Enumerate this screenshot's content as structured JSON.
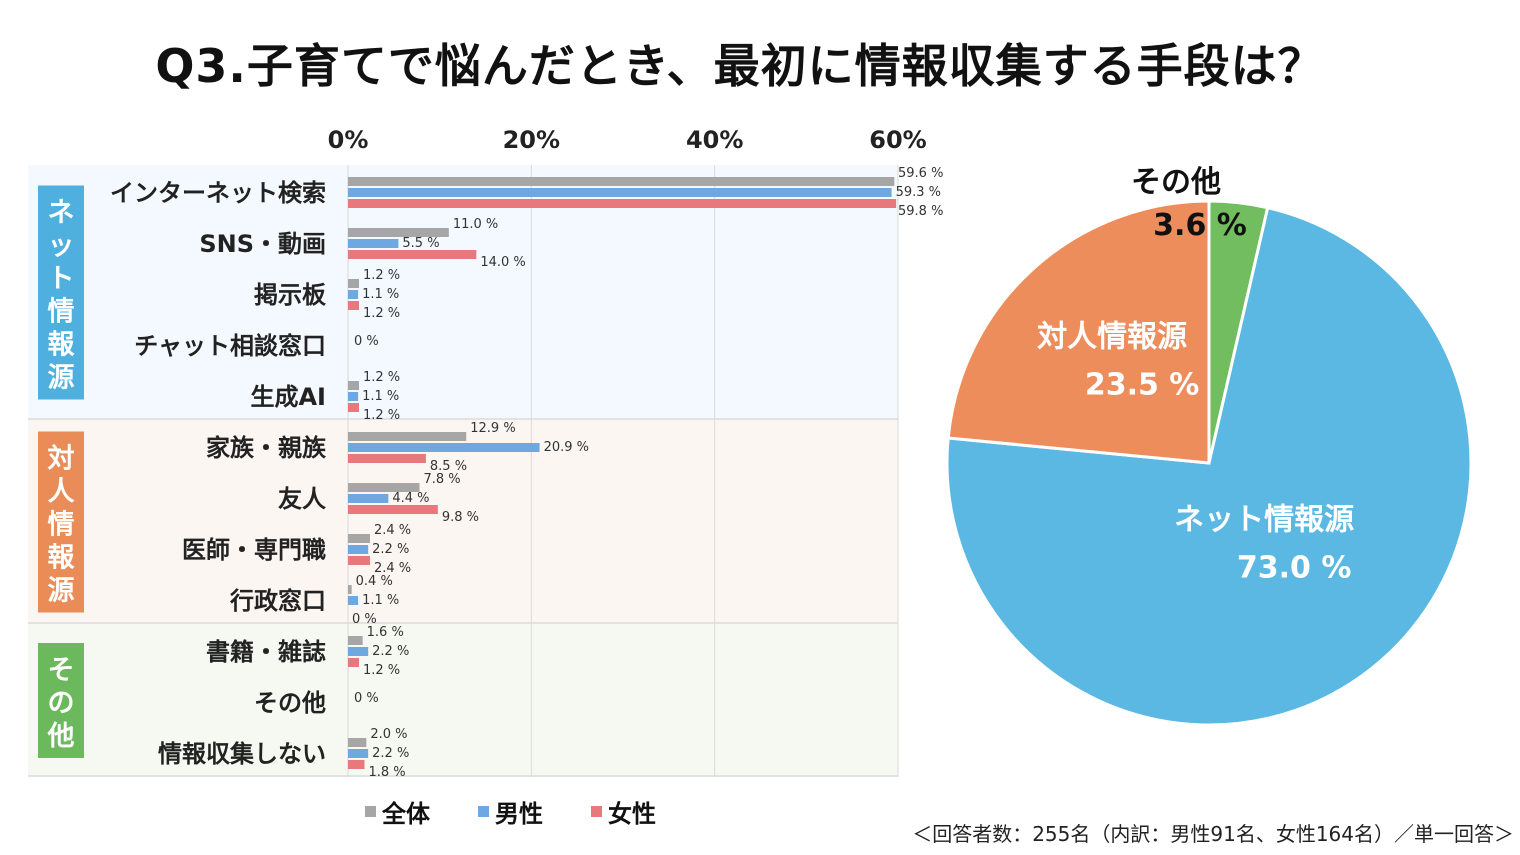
{
  "title": "Q3.子育てで悩んだとき、最初に情報収集する手段は？",
  "note": "＜回答者数：255名（内訳：男性91名、女性164名）／単一回答＞",
  "colors": {
    "all": "#a6a6a6",
    "male": "#6fa8e0",
    "female": "#e8787c",
    "net_bg": "#f3f9fe",
    "person_bg": "#fcf6f3",
    "other_bg": "#f5f9f1",
    "net_tag": "#4fb0e0",
    "person_tag": "#e98c57",
    "other_tag": "#6cb85c",
    "pie_net": "#5bb8e3",
    "pie_person": "#ec8d5b",
    "pie_other": "#72bd5f"
  },
  "chart_data": [
    {
      "type": "bar",
      "orientation": "horizontal",
      "axis_ticks": [
        "0%",
        "20%",
        "40%",
        "60%"
      ],
      "xlim": [
        0,
        60
      ],
      "unit_suffix": " %",
      "legend": [
        {
          "key": "all",
          "label": "全体"
        },
        {
          "key": "male",
          "label": "男性"
        },
        {
          "key": "female",
          "label": "女性"
        }
      ],
      "groups": [
        {
          "key": "net",
          "label": "ネット情報源"
        },
        {
          "key": "person",
          "label": "対人情報源"
        },
        {
          "key": "other",
          "label": "その他"
        }
      ],
      "categories": [
        {
          "label": "インターネット検索",
          "group": "net",
          "all": 59.6,
          "male": 59.3,
          "female": 59.8,
          "labels": [
            "59.6 %",
            "59.3 %",
            "59.8 %"
          ]
        },
        {
          "label": "SNS・動画",
          "group": "net",
          "all": 11.0,
          "male": 5.5,
          "female": 14.0,
          "labels": [
            "11.0 %",
            "5.5 %",
            "14.0 %"
          ]
        },
        {
          "label": "掲示板",
          "group": "net",
          "all": 1.2,
          "male": 1.1,
          "female": 1.2,
          "labels": [
            "1.2 %",
            "1.1 %",
            "1.2 %"
          ]
        },
        {
          "label": "チャット相談窓口",
          "group": "net",
          "all": 0,
          "male": 0,
          "female": 0,
          "labels": [
            "0 %"
          ]
        },
        {
          "label": "生成AI",
          "group": "net",
          "all": 1.2,
          "male": 1.1,
          "female": 1.2,
          "labels": [
            "1.2 %",
            "1.1 %",
            "1.2 %"
          ]
        },
        {
          "label": "家族・親族",
          "group": "person",
          "all": 12.9,
          "male": 20.9,
          "female": 8.5,
          "labels": [
            "12.9 %",
            "20.9 %",
            "8.5 %"
          ]
        },
        {
          "label": "友人",
          "group": "person",
          "all": 7.8,
          "male": 4.4,
          "female": 9.8,
          "labels": [
            "7.8 %",
            "4.4 %",
            "9.8 %"
          ]
        },
        {
          "label": "医師・専門職",
          "group": "person",
          "all": 2.4,
          "male": 2.2,
          "female": 2.4,
          "labels": [
            "2.4 %",
            "2.2 %",
            "2.4 %"
          ]
        },
        {
          "label": "行政窓口",
          "group": "person",
          "all": 0.4,
          "male": 1.1,
          "female": 0,
          "labels": [
            "0.4 %",
            "1.1 %",
            "0 %"
          ]
        },
        {
          "label": "書籍・雑誌",
          "group": "other",
          "all": 1.6,
          "male": 2.2,
          "female": 1.2,
          "labels": [
            "1.6 %",
            "2.2 %",
            "1.2 %"
          ]
        },
        {
          "label": "その他",
          "group": "other",
          "all": 0,
          "male": 0,
          "female": 0,
          "labels": [
            "0 %"
          ]
        },
        {
          "label": "情報収集しない",
          "group": "other",
          "all": 2.0,
          "male": 2.2,
          "female": 1.8,
          "labels": [
            "2.0 %",
            "2.2 %",
            "1.8 %"
          ]
        }
      ]
    },
    {
      "type": "pie",
      "slices": [
        {
          "key": "other",
          "label": "その他",
          "value": 3.6,
          "value_label": "3.6 %"
        },
        {
          "key": "net",
          "label": "ネット情報源",
          "value": 73.0,
          "value_label": "73.0 %"
        },
        {
          "key": "person",
          "label": "対人情報源",
          "value": 23.5,
          "value_label": "23.5 %"
        }
      ]
    }
  ]
}
